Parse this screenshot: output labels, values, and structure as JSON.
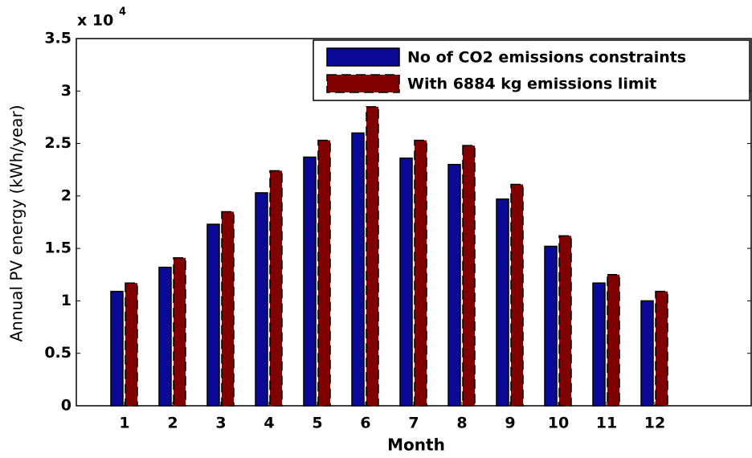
{
  "chart_data": {
    "type": "bar",
    "xlabel": "Month",
    "ylabel": "Annual PV energy (kWh/year)",
    "y_scale_base": "x 10",
    "y_scale_exponent": "4",
    "x": [
      1,
      2,
      3,
      4,
      5,
      6,
      7,
      8,
      9,
      10,
      11,
      12
    ],
    "xlim": [
      0,
      14
    ],
    "xticks": [
      1,
      2,
      3,
      4,
      5,
      6,
      7,
      8,
      9,
      10,
      11,
      12
    ],
    "ylim": [
      0,
      3.5
    ],
    "yticks": [
      0,
      0.5,
      1,
      1.5,
      2,
      2.5,
      3,
      3.5
    ],
    "legend_position": "upper right",
    "series": [
      {
        "name": "No of CO2 emissions constraints",
        "color": "#0a0a96",
        "edge": "solid",
        "values": [
          1.09,
          1.32,
          1.73,
          2.03,
          2.37,
          2.6,
          2.36,
          2.3,
          1.97,
          1.52,
          1.17,
          1.0
        ]
      },
      {
        "name": "With 6884 kg emissions limit",
        "color": "#800000",
        "edge": "dashed",
        "values": [
          1.17,
          1.41,
          1.85,
          2.24,
          2.53,
          2.85,
          2.53,
          2.48,
          2.11,
          1.62,
          1.25,
          1.09
        ]
      }
    ]
  }
}
